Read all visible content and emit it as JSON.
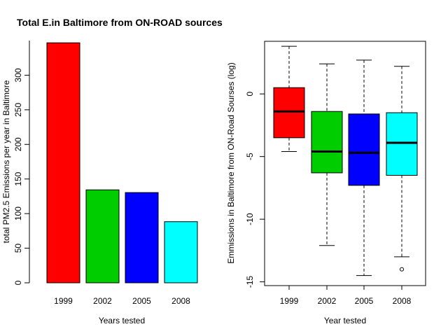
{
  "chart_data": [
    {
      "type": "bar",
      "title": "Total E.in Baltimore from ON-ROAD sources",
      "xlabel": "Years tested",
      "ylabel": "total PM2.5 Emissions per year in Baltimore",
      "categories": [
        "1999",
        "2002",
        "2005",
        "2008"
      ],
      "values": [
        346.8,
        134.3,
        130.4,
        88.3
      ],
      "colors": [
        "#ff0000",
        "#00cd00",
        "#0000ff",
        "#00ffff"
      ],
      "ylim": [
        0,
        350
      ],
      "yticks": [
        0,
        50,
        100,
        150,
        200,
        250,
        300
      ],
      "grid": false
    },
    {
      "type": "boxplot",
      "title": "",
      "xlabel": "Year tested",
      "ylabel": "Emmissions in Baltimore from ON-Road Sourses (log)",
      "categories": [
        "1999",
        "2002",
        "2005",
        "2008"
      ],
      "colors": [
        "#ff0000",
        "#00cd00",
        "#0000ff",
        "#00ffff"
      ],
      "series": [
        {
          "category": "1999",
          "whisker_low": -4.6,
          "q1": -3.5,
          "median": -1.4,
          "q3": 0.5,
          "whisker_high": 3.8,
          "outliers": []
        },
        {
          "category": "2002",
          "whisker_low": -12.1,
          "q1": -6.3,
          "median": -4.6,
          "q3": -1.4,
          "whisker_high": 2.4,
          "outliers": []
        },
        {
          "category": "2005",
          "whisker_low": -14.5,
          "q1": -7.3,
          "median": -4.7,
          "q3": -1.6,
          "whisker_high": 2.7,
          "outliers": []
        },
        {
          "category": "2008",
          "whisker_low": -13.0,
          "q1": -6.5,
          "median": -3.9,
          "q3": -1.5,
          "whisker_high": 2.2,
          "outliers": [
            -14.0
          ]
        }
      ],
      "ylim": [
        -15.3,
        4.2
      ],
      "yticks": [
        -15,
        -10,
        -5,
        0
      ],
      "grid": false
    }
  ]
}
